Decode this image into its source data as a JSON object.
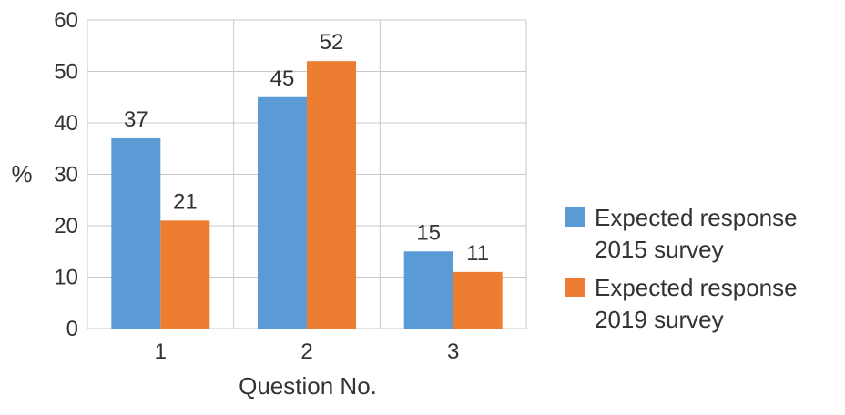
{
  "chart_data": {
    "type": "bar",
    "categories": [
      "1",
      "2",
      "3"
    ],
    "series": [
      {
        "name": "Expected response\n2015 survey",
        "color": "#5b9bd5",
        "values": [
          37,
          45,
          15
        ]
      },
      {
        "name": "Expected response\n2019 survey",
        "color": "#ed7d31",
        "values": [
          21,
          52,
          11
        ]
      }
    ],
    "data_labels": [
      [
        "37",
        "45",
        "15"
      ],
      [
        "21",
        "52",
        "11"
      ]
    ],
    "xlabel": "Question No.",
    "ylabel": "%",
    "ylim": [
      0,
      60
    ],
    "yticks": [
      0,
      10,
      20,
      30,
      40,
      50,
      60
    ],
    "ytick_labels": [
      "0",
      "10",
      "20",
      "30",
      "40",
      "50",
      "60"
    ],
    "grid": true,
    "legend_position": "right"
  }
}
